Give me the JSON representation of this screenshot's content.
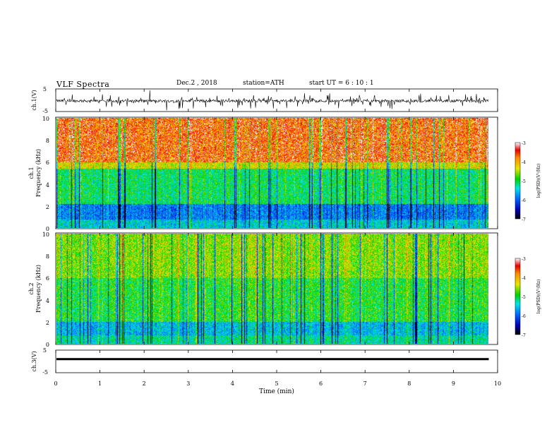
{
  "header": {
    "title": "VLF  Spectra",
    "date": "Dec.2  , 2018",
    "station": "station=ATH",
    "start": "start  UT  =    6   : 10 : 1"
  },
  "chart_data": [
    {
      "type": "line",
      "name": "ch1-waveform",
      "ylabel": "ch.1(V)",
      "ylim": [
        -5,
        5
      ],
      "yticks": [
        "5",
        "-5"
      ],
      "xlim": [
        0,
        10
      ]
    },
    {
      "type": "heatmap",
      "name": "ch1-spectrogram",
      "ylabel": "ch.1\nFrequency (kHz)",
      "ylabel_line1": "ch.1",
      "ylabel_line2": "Frequency (kHz)",
      "ylim": [
        0,
        10
      ],
      "yticks": [
        "0",
        "2",
        "4",
        "6",
        "8",
        "10"
      ],
      "xlim": [
        0,
        10
      ],
      "data_end_min": 9.8,
      "colorbar": {
        "label": "log(PSD)(V²/Hz)",
        "range": [
          -7,
          -3
        ],
        "ticks": [
          "-3",
          "-4",
          "-5",
          "-6",
          "-7"
        ]
      }
    },
    {
      "type": "heatmap",
      "name": "ch2-spectrogram",
      "ylabel_line1": "ch.2",
      "ylabel_line2": "Frequency (kHz)",
      "ylim": [
        0,
        10
      ],
      "yticks": [
        "0",
        "2",
        "4",
        "6",
        "8",
        "10"
      ],
      "xlim": [
        0,
        10
      ],
      "data_end_min": 9.8,
      "colorbar": {
        "label": "log(PSD)(V²/Hz)",
        "range": [
          -7,
          -3
        ],
        "ticks": [
          "-3",
          "-4",
          "-5",
          "-6",
          "-7"
        ]
      }
    },
    {
      "type": "line",
      "name": "ch3-waveform",
      "ylabel": "ch.3(V)",
      "ylim": [
        -5,
        5
      ],
      "yticks": [
        "5",
        "-5"
      ],
      "xlim": [
        0,
        10
      ],
      "level_v": 1
    }
  ],
  "xaxis": {
    "label": "Time  (min)",
    "ticks": [
      "0",
      "1",
      "2",
      "3",
      "4",
      "5",
      "6",
      "7",
      "8",
      "9",
      "10"
    ]
  }
}
